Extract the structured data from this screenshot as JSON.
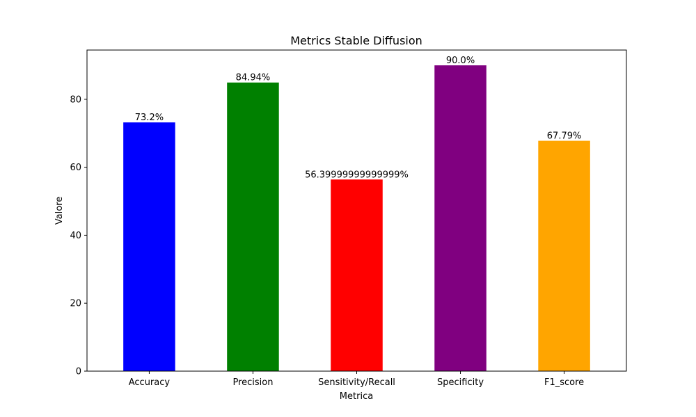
{
  "chart_data": {
    "type": "bar",
    "title": "Metrics Stable Diffusion",
    "xlabel": "Metrica",
    "ylabel": "Valore",
    "categories": [
      "Accuracy",
      "Precision",
      "Sensitivity/Recall",
      "Specificity",
      "F1_score"
    ],
    "values": [
      73.2,
      84.94,
      56.39999999999999,
      90.0,
      67.79
    ],
    "data_labels": [
      "73.2%",
      "84.94%",
      "56.39999999999999%",
      "90.0%",
      "67.79%"
    ],
    "colors": [
      "#0000ff",
      "#008000",
      "#ff0000",
      "#800080",
      "#ffa500"
    ],
    "ylim": [
      0,
      94.5
    ],
    "yticks": [
      0,
      20,
      40,
      60,
      80
    ],
    "grid": false,
    "legend": "none"
  }
}
